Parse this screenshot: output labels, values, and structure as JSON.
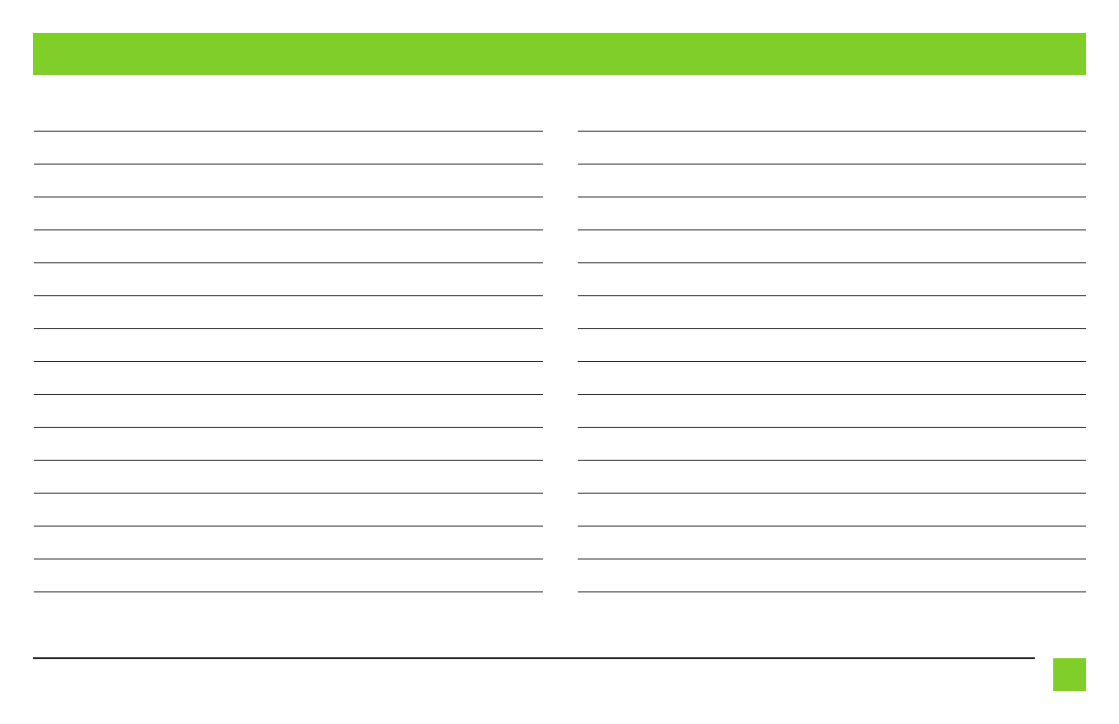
{
  "colors": {
    "accent": "#80ce2a",
    "rule": "#222222",
    "background": "#ffffff"
  },
  "header": {
    "title": ""
  },
  "notes": {
    "left_column": [],
    "right_column": []
  }
}
